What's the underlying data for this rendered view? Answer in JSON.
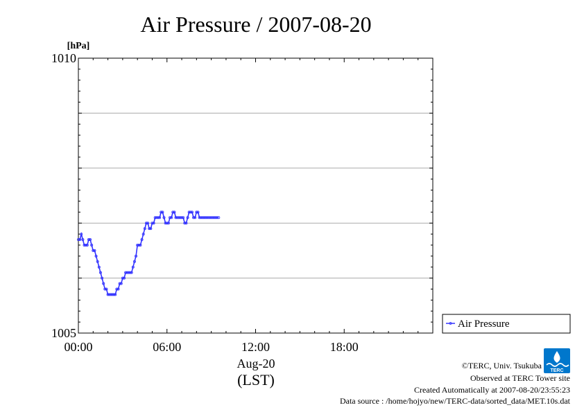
{
  "chart_data": {
    "type": "line",
    "title": "Air Pressure / 2007-08-20",
    "ylabel": "[hPa]",
    "ylim": [
      1005,
      1010
    ],
    "y_ticks": [
      1005,
      1006,
      1007,
      1008,
      1009,
      1010
    ],
    "y_tick_labels": [
      "1005",
      "",
      "",
      "",
      "",
      "1010"
    ],
    "xlim_hours": [
      0,
      24
    ],
    "x_ticks_hours": [
      0,
      6,
      12,
      18
    ],
    "x_tick_labels": [
      "00:00",
      "06:00",
      "12:00",
      "18:00"
    ],
    "x_date_label": "Aug-20",
    "xlabel": "(LST)",
    "grid": "horizontal",
    "legend_position": "right",
    "series": [
      {
        "name": "Air Pressure",
        "color": "#3333ff",
        "x_hours": [
          0.0,
          0.1,
          0.2,
          0.3,
          0.4,
          0.5,
          0.6,
          0.7,
          0.8,
          0.9,
          1.0,
          1.1,
          1.2,
          1.3,
          1.4,
          1.5,
          1.6,
          1.7,
          1.8,
          1.9,
          2.0,
          2.1,
          2.2,
          2.3,
          2.4,
          2.5,
          2.6,
          2.7,
          2.8,
          2.9,
          3.0,
          3.1,
          3.2,
          3.3,
          3.4,
          3.5,
          3.6,
          3.7,
          3.8,
          3.9,
          4.0,
          4.1,
          4.2,
          4.3,
          4.4,
          4.5,
          4.6,
          4.7,
          4.8,
          4.9,
          5.0,
          5.1,
          5.2,
          5.3,
          5.4,
          5.5,
          5.6,
          5.7,
          5.8,
          5.9,
          6.0,
          6.1,
          6.2,
          6.3,
          6.4,
          6.5,
          6.6,
          6.7,
          6.8,
          6.9,
          7.0,
          7.1,
          7.2,
          7.3,
          7.4,
          7.5,
          7.6,
          7.7,
          7.8,
          7.9,
          8.0,
          8.1,
          8.2,
          8.3,
          8.4,
          8.5,
          8.6,
          8.7,
          8.8,
          8.9,
          9.0,
          9.1,
          9.2,
          9.3,
          9.4,
          9.5
        ],
        "values": [
          1006.7,
          1006.7,
          1006.8,
          1006.7,
          1006.6,
          1006.6,
          1006.6,
          1006.7,
          1006.7,
          1006.6,
          1006.5,
          1006.5,
          1006.4,
          1006.3,
          1006.2,
          1006.1,
          1006.0,
          1005.9,
          1005.8,
          1005.8,
          1005.7,
          1005.7,
          1005.7,
          1005.7,
          1005.7,
          1005.7,
          1005.8,
          1005.8,
          1005.9,
          1005.9,
          1006.0,
          1006.0,
          1006.1,
          1006.1,
          1006.1,
          1006.1,
          1006.1,
          1006.2,
          1006.3,
          1006.4,
          1006.6,
          1006.6,
          1006.6,
          1006.7,
          1006.8,
          1006.9,
          1007.0,
          1007.0,
          1006.9,
          1006.9,
          1007.0,
          1007.0,
          1007.1,
          1007.1,
          1007.1,
          1007.1,
          1007.2,
          1007.2,
          1007.1,
          1007.0,
          1007.0,
          1007.0,
          1007.1,
          1007.1,
          1007.2,
          1007.2,
          1007.1,
          1007.1,
          1007.1,
          1007.1,
          1007.1,
          1007.1,
          1007.0,
          1007.0,
          1007.1,
          1007.2,
          1007.2,
          1007.2,
          1007.1,
          1007.1,
          1007.2,
          1007.2,
          1007.1,
          1007.1,
          1007.1,
          1007.1,
          1007.1,
          1007.1,
          1007.1,
          1007.1,
          1007.1,
          1007.1,
          1007.1,
          1007.1,
          1007.1,
          1007.1
        ]
      }
    ]
  },
  "footer": {
    "copyright": "©TERC, Univ. Tsukuba",
    "observed": "Observed at TERC Tower site",
    "created": "Created Automatically at 2007-08-20/23:55:23",
    "source": "Data source : /home/hojyo/new/TERC-data/sorted_data/MET.10s.dat"
  },
  "logo": {
    "text": "TERC",
    "color": "#0077cc"
  }
}
